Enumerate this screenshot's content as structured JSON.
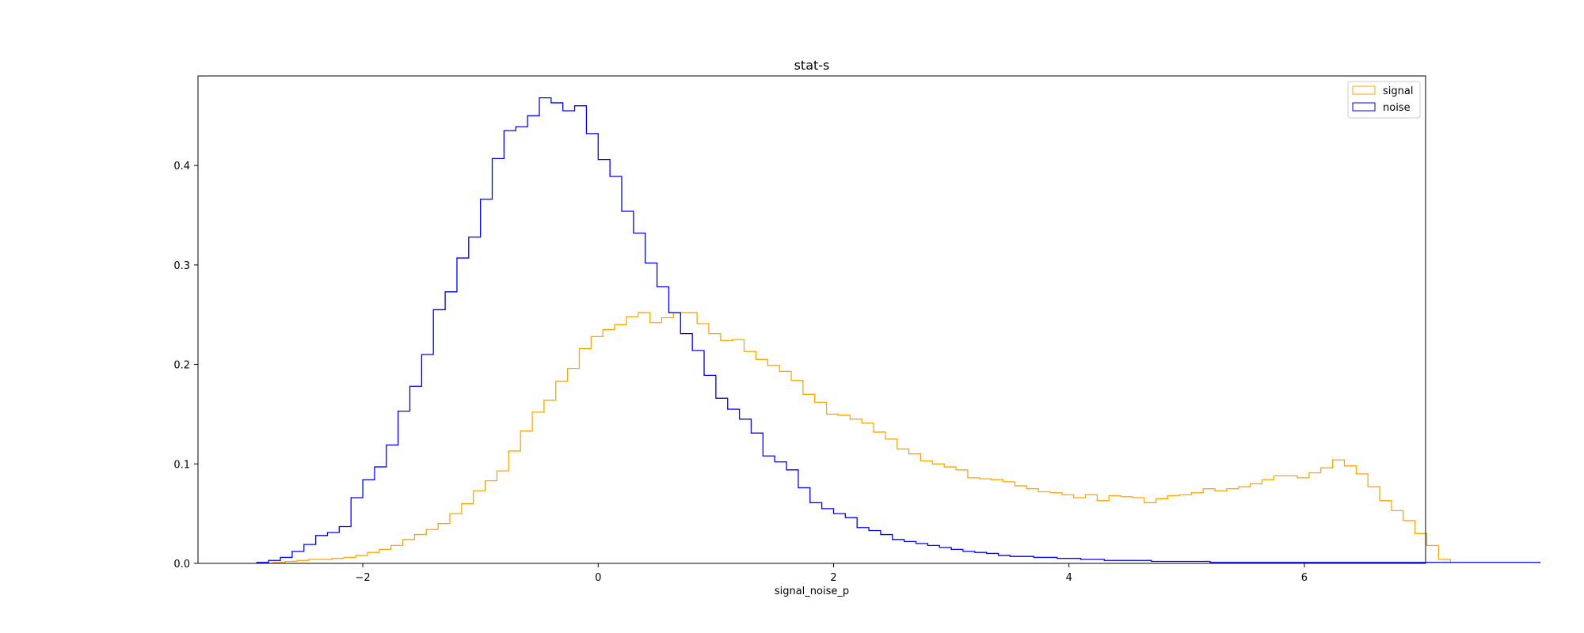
{
  "chart_data": {
    "type": "histogram-step",
    "title": "stat-s",
    "xlabel": "signal_noise_p",
    "ylabel": "",
    "xlim": [
      -3.4,
      7.03
    ],
    "ylim": [
      0,
      0.49
    ],
    "xticks": [
      -2,
      0,
      2,
      4,
      6
    ],
    "xtick_labels": [
      "−2",
      "0",
      "2",
      "4",
      "6"
    ],
    "yticks": [
      0.0,
      0.1,
      0.2,
      0.3,
      0.4
    ],
    "ytick_labels": [
      "0.0",
      "0.1",
      "0.2",
      "0.3",
      "0.4"
    ],
    "grid": false,
    "legend_position": "top-right",
    "series": [
      {
        "name": "signal",
        "color": "#FFA500",
        "bin_start": -2.76,
        "bin_width": 0.1,
        "values": [
          0.001,
          0.002,
          0.003,
          0.004,
          0.004,
          0.005,
          0.006,
          0.008,
          0.011,
          0.014,
          0.018,
          0.024,
          0.029,
          0.034,
          0.04,
          0.05,
          0.06,
          0.073,
          0.083,
          0.093,
          0.113,
          0.133,
          0.152,
          0.164,
          0.183,
          0.196,
          0.216,
          0.228,
          0.235,
          0.24,
          0.248,
          0.252,
          0.242,
          0.247,
          0.252,
          0.252,
          0.241,
          0.231,
          0.224,
          0.225,
          0.213,
          0.205,
          0.199,
          0.193,
          0.184,
          0.17,
          0.162,
          0.15,
          0.149,
          0.145,
          0.141,
          0.132,
          0.125,
          0.115,
          0.11,
          0.103,
          0.1,
          0.097,
          0.094,
          0.086,
          0.085,
          0.084,
          0.082,
          0.078,
          0.075,
          0.072,
          0.071,
          0.069,
          0.066,
          0.069,
          0.063,
          0.068,
          0.067,
          0.066,
          0.061,
          0.065,
          0.068,
          0.069,
          0.071,
          0.075,
          0.073,
          0.075,
          0.077,
          0.08,
          0.084,
          0.088,
          0.088,
          0.086,
          0.091,
          0.096,
          0.104,
          0.098,
          0.09,
          0.077,
          0.063,
          0.053,
          0.043,
          0.03,
          0.018,
          0.004
        ]
      },
      {
        "name": "noise",
        "color": "#0000FF",
        "bin_start": -2.9,
        "bin_width": 0.1,
        "values": [
          0.001,
          0.003,
          0.006,
          0.012,
          0.019,
          0.028,
          0.031,
          0.037,
          0.066,
          0.084,
          0.097,
          0.119,
          0.153,
          0.178,
          0.21,
          0.255,
          0.273,
          0.307,
          0.328,
          0.366,
          0.407,
          0.435,
          0.439,
          0.45,
          0.468,
          0.463,
          0.455,
          0.46,
          0.432,
          0.406,
          0.389,
          0.354,
          0.332,
          0.302,
          0.278,
          0.252,
          0.231,
          0.214,
          0.189,
          0.166,
          0.155,
          0.145,
          0.131,
          0.108,
          0.102,
          0.094,
          0.076,
          0.061,
          0.055,
          0.05,
          0.046,
          0.036,
          0.033,
          0.029,
          0.024,
          0.022,
          0.02,
          0.018,
          0.016,
          0.014,
          0.012,
          0.011,
          0.01,
          0.008,
          0.007,
          0.007,
          0.006,
          0.006,
          0.005,
          0.005,
          0.004,
          0.004,
          0.003,
          0.003,
          0.003,
          0.003,
          0.002,
          0.002,
          0.002,
          0.002,
          0.002,
          0.001,
          0.001,
          0.001,
          0.001,
          0.001,
          0.001,
          0.001,
          0.001,
          0.001,
          0.001,
          0.001,
          0.001,
          0.001,
          0.001,
          0.001,
          0.001,
          0.001,
          0.001,
          0.001,
          0.001,
          0.001,
          0.001,
          0.001,
          0.001,
          0.001,
          0.001,
          0.001,
          0.001
        ]
      }
    ]
  }
}
